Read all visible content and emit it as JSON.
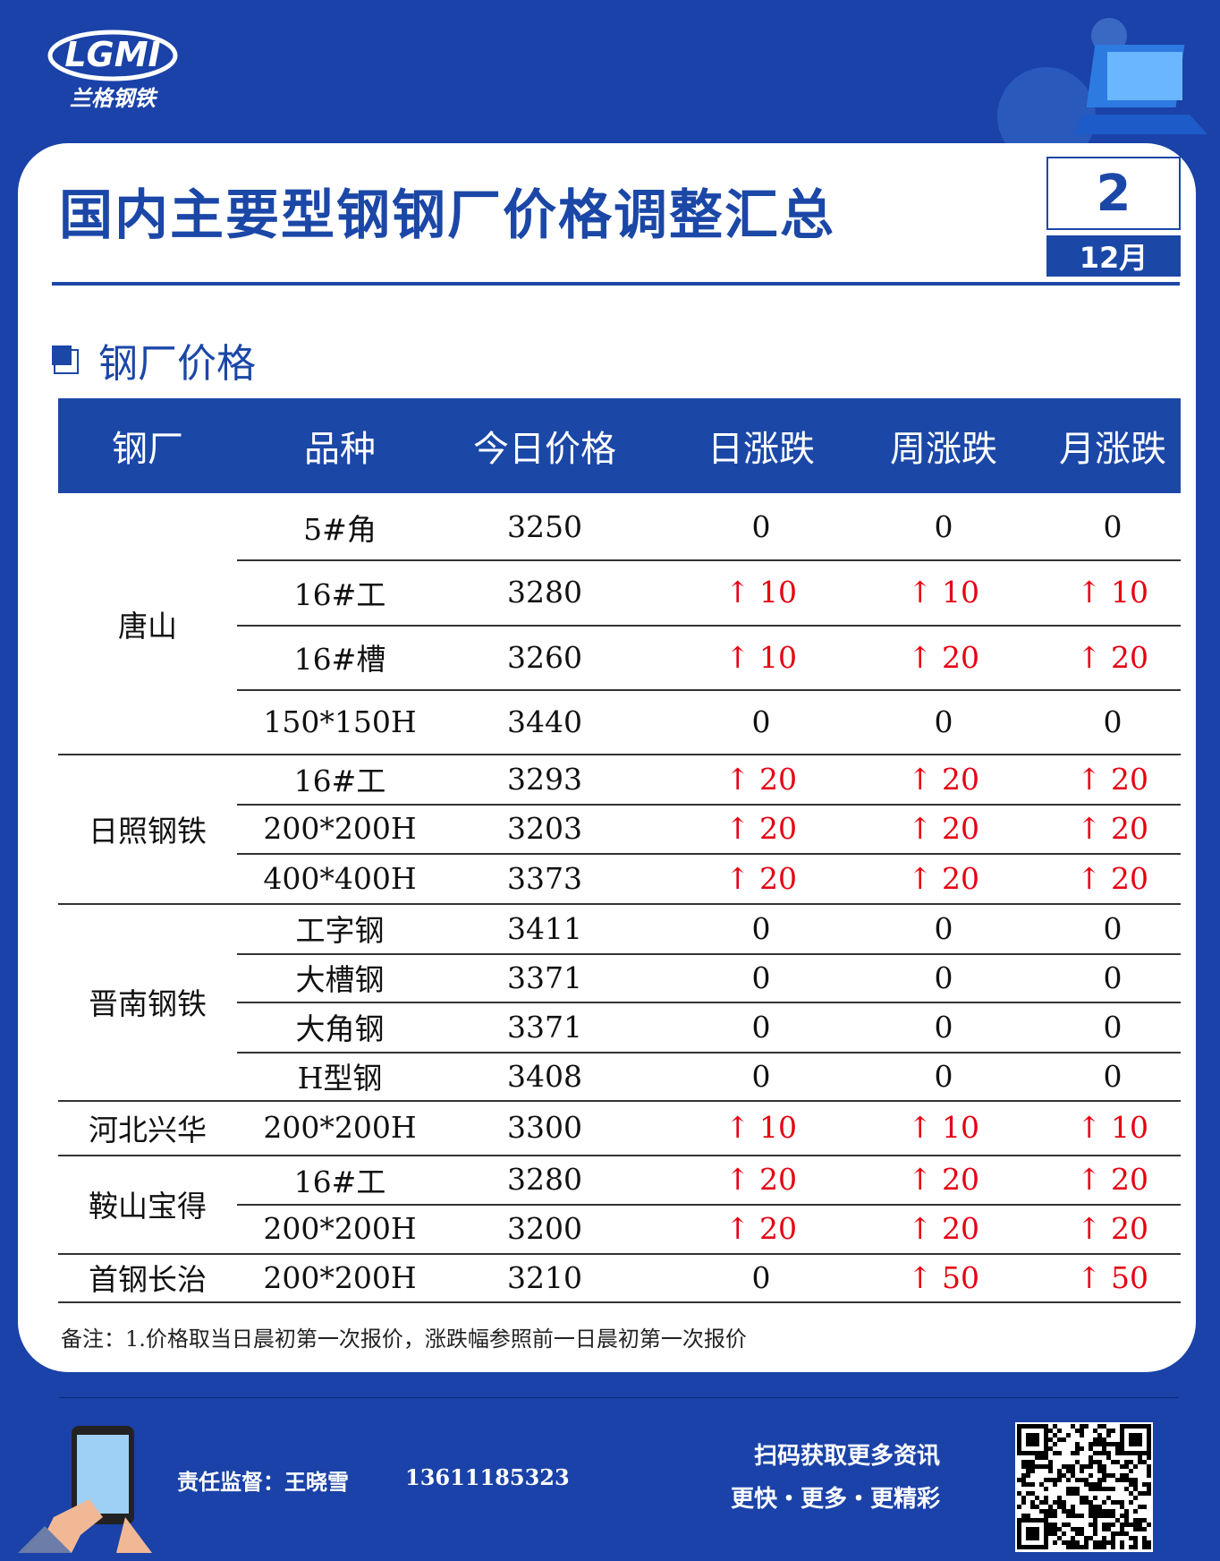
{
  "header": {
    "logo": "LGMI",
    "brand": "兰格钢铁",
    "title": "国内主要型钢钢厂价格调整汇总",
    "day": "2",
    "month": "12月"
  },
  "section": "钢厂价格",
  "table": {
    "columns": [
      "钢厂",
      "品种",
      "今日价格",
      "日涨跌",
      "周涨跌",
      "月涨跌"
    ],
    "groups": [
      {
        "mill": "唐山",
        "rows": [
          [
            "5#角",
            "3250",
            "0",
            "0",
            "0"
          ],
          [
            "16#工",
            "3280",
            "↑ 10",
            "↑ 10",
            "↑ 10"
          ],
          [
            "16#槽",
            "3260",
            "↑ 10",
            "↑ 20",
            "↑ 20"
          ],
          [
            "150*150H",
            "3440",
            "0",
            "0",
            "0"
          ]
        ]
      },
      {
        "mill": "日照钢铁",
        "rows": [
          [
            "16#工",
            "3293",
            "↑ 20",
            "↑ 20",
            "↑ 20"
          ],
          [
            "200*200H",
            "3203",
            "↑ 20",
            "↑ 20",
            "↑ 20"
          ],
          [
            "400*400H",
            "3373",
            "↑ 20",
            "↑ 20",
            "↑ 20"
          ]
        ]
      },
      {
        "mill": "晋南钢铁",
        "rows": [
          [
            "工字钢",
            "3411",
            "0",
            "0",
            "0"
          ],
          [
            "大槽钢",
            "3371",
            "0",
            "0",
            "0"
          ],
          [
            "大角钢",
            "3371",
            "0",
            "0",
            "0"
          ],
          [
            "H型钢",
            "3408",
            "0",
            "0",
            "0"
          ]
        ]
      },
      {
        "mill": "河北兴华",
        "rows": [
          [
            "200*200H",
            "3300",
            "↑ 10",
            "↑ 10",
            "↑ 10"
          ]
        ]
      },
      {
        "mill": "鞍山宝得",
        "rows": [
          [
            "16#工",
            "3280",
            "↑ 20",
            "↑ 20",
            "↑ 20"
          ],
          [
            "200*200H",
            "3200",
            "↑ 20",
            "↑ 20",
            "↑ 20"
          ]
        ]
      },
      {
        "mill": "首钢长治",
        "rows": [
          [
            "200*200H",
            "3210",
            "0",
            "↑ 50",
            "↑ 50"
          ]
        ]
      }
    ]
  },
  "note": "备注：1.价格取当日晨初第一次报价，涨跌幅参照前一日晨初第一次报价",
  "footer": {
    "supervisor": "责任监督：王晓雪",
    "phone": "13611185323",
    "scan": "扫码获取更多资讯",
    "slogan": "更快・更多・更精彩"
  }
}
